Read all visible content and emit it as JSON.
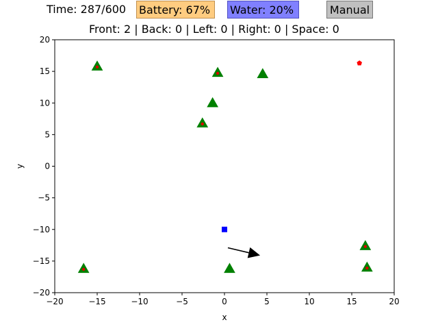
{
  "hud": {
    "time": "Time: 287/600",
    "battery": "Battery: 67%",
    "water": "Water: 20%",
    "mode_button": "Manual",
    "sensors": "Front: 2 | Back: 0 | Left: 0 | Right: 0 | Space: 0"
  },
  "colors": {
    "battery_bg": "#ffcc80",
    "water_bg": "#8080ff",
    "manual_bg": "#c0c0c0",
    "plant": "#008000",
    "plant_dot": "#dd0000",
    "robot": "#0000ff",
    "target": "#ff0000",
    "arrow": "#000000"
  },
  "chart_data": {
    "type": "scatter",
    "xlabel": "x",
    "ylabel": "y",
    "xlim": [
      -20,
      20
    ],
    "ylim": [
      -20,
      20
    ],
    "xticks": [
      -20,
      -15,
      -10,
      -5,
      0,
      5,
      10,
      15,
      20
    ],
    "yticks": [
      -20,
      -15,
      -10,
      -5,
      0,
      5,
      10,
      15,
      20
    ],
    "grid": false,
    "plants": [
      {
        "x": -15.0,
        "y": 15.8,
        "watered": false
      },
      {
        "x": -0.8,
        "y": 14.8,
        "watered": false
      },
      {
        "x": 4.5,
        "y": 14.6,
        "watered": true
      },
      {
        "x": -1.4,
        "y": 10.0,
        "watered": true
      },
      {
        "x": -2.6,
        "y": 6.8,
        "watered": false
      },
      {
        "x": -16.6,
        "y": -16.2,
        "watered": false
      },
      {
        "x": 0.6,
        "y": -16.2,
        "watered": true
      },
      {
        "x": 16.6,
        "y": -12.6,
        "watered": false
      },
      {
        "x": 16.8,
        "y": -16.0,
        "watered": false
      }
    ],
    "robot": {
      "x": 0.0,
      "y": -10.0
    },
    "target": {
      "x": 15.9,
      "y": 16.3
    },
    "heading": {
      "x0": 0.4,
      "y0": -12.9,
      "x1": 4.2,
      "y1": -14.1
    }
  }
}
